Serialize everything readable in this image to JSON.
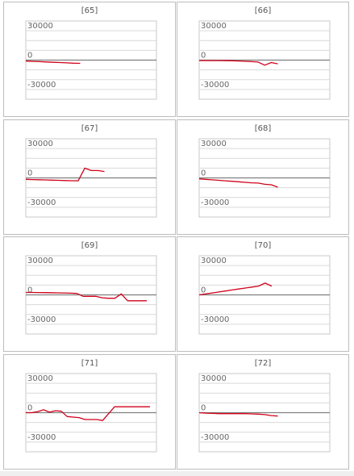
{
  "colors": {
    "line": "#d0021b",
    "grid": "#d9d9d9",
    "zero_axis": "#7f7f7f",
    "frame": "#c8c8c8"
  },
  "chart_data": [
    {
      "type": "line",
      "title": "[65]",
      "ylim": [
        -40000,
        40000
      ],
      "y_ticks": [
        "30000",
        "0",
        "-30000"
      ],
      "series": [
        {
          "values": [
            -1000,
            -1300,
            -1600,
            -1900,
            -2200,
            -2500,
            -2800,
            -3100,
            -3300
          ]
        }
      ]
    },
    {
      "type": "line",
      "title": "[66]",
      "ylim": [
        -40000,
        40000
      ],
      "y_ticks": [
        "30000",
        "0",
        "-30000"
      ],
      "series": [
        {
          "values": [
            -500,
            -500,
            -500,
            -500,
            -600,
            -700,
            -900,
            -1200,
            -1600,
            -2000,
            -5200,
            -2500,
            -3800
          ]
        }
      ]
    },
    {
      "type": "line",
      "title": "[67]",
      "ylim": [
        -40000,
        40000
      ],
      "y_ticks": [
        "30000",
        "0",
        "-30000"
      ],
      "series": [
        {
          "values": [
            -1500,
            -1700,
            -1900,
            -2100,
            -2300,
            -2500,
            -2700,
            -2900,
            -3000,
            10000,
            7500,
            7500,
            6500
          ]
        }
      ]
    },
    {
      "type": "line",
      "title": "[68]",
      "ylim": [
        -40000,
        40000
      ],
      "y_ticks": [
        "30000",
        "0",
        "-30000"
      ],
      "series": [
        {
          "values": [
            -1000,
            -1500,
            -2000,
            -2500,
            -3000,
            -3500,
            -4000,
            -4500,
            -5000,
            -5300,
            -6500,
            -7000,
            -9500
          ]
        }
      ]
    },
    {
      "type": "line",
      "title": "[69]",
      "ylim": [
        -40000,
        40000
      ],
      "y_ticks": [
        "30000",
        "0",
        "-30000"
      ],
      "series": [
        {
          "values": [
            2500,
            2500,
            2400,
            2300,
            2200,
            2100,
            2000,
            1700,
            1500,
            -1500,
            -1500,
            -1500,
            -3000,
            -3500,
            -3500,
            1000,
            -6000,
            -6000,
            -6000,
            -6000
          ]
        }
      ]
    },
    {
      "type": "line",
      "title": "[70]",
      "ylim": [
        -40000,
        40000
      ],
      "y_ticks": [
        "30000",
        "0",
        "-30000"
      ],
      "series": [
        {
          "values": [
            0,
            1000,
            2000,
            3000,
            4000,
            5000,
            6000,
            7000,
            8000,
            9000,
            12000,
            9000
          ]
        }
      ]
    },
    {
      "type": "line",
      "title": "[71]",
      "ylim": [
        -40000,
        40000
      ],
      "y_ticks": [
        "30000",
        "0",
        "-30000"
      ],
      "series": [
        {
          "values": [
            0,
            0,
            1000,
            3000,
            500,
            2000,
            1500,
            -4000,
            -4500,
            -5000,
            -7000,
            -7000,
            -7000,
            -8000,
            -1000,
            6000,
            6000,
            6000,
            6000,
            6000,
            6000,
            6000
          ]
        }
      ]
    },
    {
      "type": "line",
      "title": "[72]",
      "ylim": [
        -40000,
        40000
      ],
      "y_ticks": [
        "30000",
        "0",
        "-30000"
      ],
      "series": [
        {
          "values": [
            0,
            -500,
            -700,
            -1000,
            -1000,
            -1000,
            -1000,
            -1000,
            -1200,
            -1500,
            -2000,
            -3000,
            -3500
          ]
        }
      ]
    }
  ]
}
